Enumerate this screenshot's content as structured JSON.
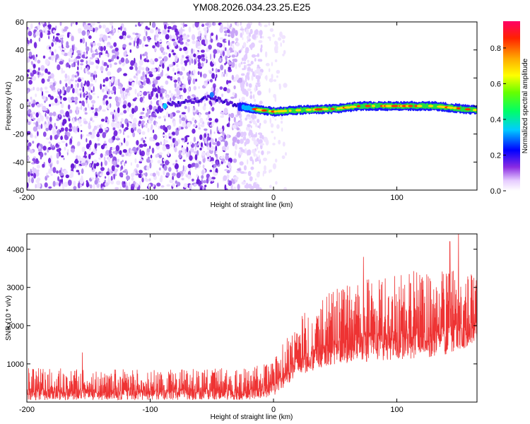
{
  "title": "YM08.2026.034.23.25.E25",
  "chart_data": [
    {
      "type": "heatmap",
      "name": "spectrogram",
      "xlabel": "Height of straight line (km)",
      "ylabel": "Frequency (Hz)",
      "xlim": [
        -200,
        165
      ],
      "ylim": [
        -60,
        60
      ],
      "xticks": [
        -200,
        -100,
        0,
        100
      ],
      "yticks": [
        -60,
        -40,
        -20,
        0,
        20,
        40,
        60
      ],
      "colorbar": {
        "label": "Normalized spectral amplitude",
        "range": [
          0,
          0.95
        ],
        "ticks": [
          0.0,
          0.2,
          0.4,
          0.6,
          0.8
        ]
      },
      "noise_region_x": [
        -200,
        -10
      ],
      "ridge_center_hz": [
        {
          "x": -90,
          "y": 0
        },
        {
          "x": -70,
          "y": 3
        },
        {
          "x": -50,
          "y": 6
        },
        {
          "x": -30,
          "y": 0
        },
        {
          "x": -10,
          "y": -3
        },
        {
          "x": 0,
          "y": -4
        },
        {
          "x": 20,
          "y": -3
        },
        {
          "x": 50,
          "y": -2
        },
        {
          "x": 70,
          "y": 0
        },
        {
          "x": 100,
          "y": 0
        },
        {
          "x": 130,
          "y": 0
        },
        {
          "x": 165,
          "y": -3
        }
      ]
    },
    {
      "type": "line",
      "name": "snr",
      "xlabel": "Height of straight line (km)",
      "ylabel": "SNR (10 * v/v)",
      "xlim": [
        -200,
        165
      ],
      "ylim": [
        0,
        4400
      ],
      "xticks": [
        -200,
        -100,
        0,
        100
      ],
      "yticks": [
        1000,
        2000,
        3000,
        4000
      ],
      "color": "#ee3333",
      "envelope": [
        {
          "x": -200,
          "low": 50,
          "high": 900
        },
        {
          "x": -100,
          "low": 50,
          "high": 850
        },
        {
          "x": -20,
          "low": 60,
          "high": 900
        },
        {
          "x": 0,
          "low": 150,
          "high": 1100
        },
        {
          "x": 20,
          "low": 700,
          "high": 2200
        },
        {
          "x": 50,
          "low": 1000,
          "high": 3000
        },
        {
          "x": 100,
          "low": 1100,
          "high": 3400
        },
        {
          "x": 140,
          "low": 1200,
          "high": 3500
        },
        {
          "x": 165,
          "low": 1500,
          "high": 3400
        }
      ],
      "peaks": [
        {
          "x": -155,
          "y": 1300
        },
        {
          "x": 73,
          "y": 3800
        },
        {
          "x": 143,
          "y": 4200
        },
        {
          "x": 150,
          "y": 4400
        }
      ]
    }
  ]
}
